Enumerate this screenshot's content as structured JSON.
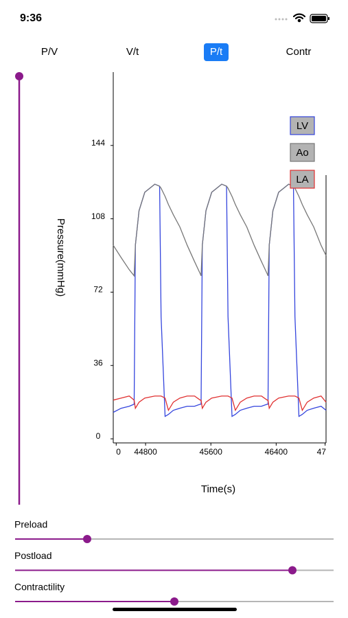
{
  "status_bar": {
    "time": "9:36"
  },
  "tabs": [
    "P/V",
    "V/t",
    "P/t",
    "Contr"
  ],
  "selected_tab": 2,
  "chart_data": {
    "type": "line",
    "xlabel": "Time(s)",
    "ylabel": "Pressure(mmHg)",
    "x": [
      44404,
      44500,
      44600,
      44660,
      44675,
      44720,
      44790,
      44913,
      44972,
      44990,
      45039,
      45080,
      45140,
      45220,
      45310,
      45400,
      45470,
      45480,
      45495,
      45540,
      45610,
      45733,
      45792,
      45810,
      45859,
      45900,
      45960,
      46040,
      46130,
      46220,
      46290,
      46300,
      46315,
      46360,
      46430,
      46553,
      46612,
      46630,
      46679,
      46720,
      46780,
      46860,
      46950,
      47011
    ],
    "series": [
      {
        "name": "LV",
        "color": "#3344dd",
        "values": [
          13,
          15,
          16,
          17,
          95,
          112,
          121,
          125,
          124,
          60,
          11,
          12,
          14,
          15,
          16,
          16,
          17,
          17,
          95,
          112,
          121,
          125,
          124,
          60,
          11,
          12,
          14,
          15,
          16,
          16,
          17,
          17,
          95,
          112,
          121,
          125,
          124,
          60,
          11,
          12,
          14,
          15,
          16,
          14
        ]
      },
      {
        "name": "Ao",
        "color": "#777777",
        "values": [
          95,
          89,
          83,
          80,
          95,
          112,
          121,
          125,
          124,
          123,
          119,
          115,
          110,
          104,
          95,
          87,
          81,
          80,
          95,
          112,
          121,
          125,
          124,
          123,
          119,
          115,
          110,
          104,
          95,
          87,
          81,
          80,
          95,
          112,
          121,
          125,
          124,
          123,
          119,
          115,
          110,
          104,
          95,
          90
        ]
      },
      {
        "name": "LA",
        "color": "#e03030",
        "values": [
          19,
          20,
          21,
          19,
          15,
          18,
          20,
          21,
          21,
          21,
          20,
          14,
          18,
          20,
          21,
          21,
          19,
          19,
          15,
          18,
          20,
          21,
          21,
          21,
          20,
          14,
          18,
          20,
          21,
          21,
          19,
          19,
          15,
          18,
          20,
          21,
          21,
          21,
          20,
          14,
          18,
          20,
          21,
          18
        ]
      }
    ],
    "xlim": [
      44404,
      47011
    ],
    "xticks": [
      {
        "value": 44440,
        "label": "0"
      },
      44800,
      45600,
      46400,
      {
        "value": 47000,
        "label": "47"
      }
    ],
    "ylim": [
      -2,
      180
    ],
    "yticks": [
      0,
      36,
      72,
      108,
      144
    ],
    "legend": "top-right"
  },
  "sliders": [
    "Preload",
    "Postload",
    "Contractility"
  ]
}
